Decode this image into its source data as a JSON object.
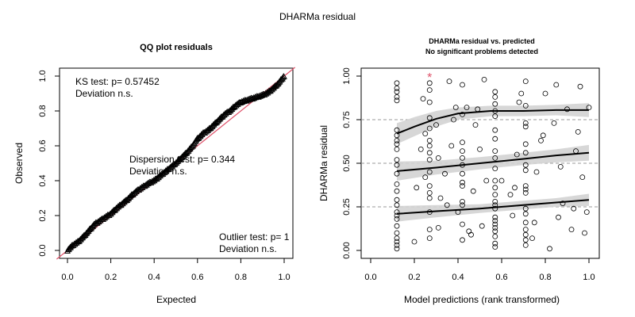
{
  "figure": {
    "title": "DHARMa residual"
  },
  "chart_data": [
    {
      "type": "scatter",
      "title": "QQ plot residuals",
      "xlabel": "Expected",
      "ylabel": "Observed",
      "xlim": [
        0,
        1
      ],
      "ylim": [
        0,
        1
      ],
      "xticks": [
        "0.0",
        "0.2",
        "0.4",
        "0.6",
        "0.8",
        "1.0"
      ],
      "yticks": [
        "0.0",
        "0.2",
        "0.4",
        "0.6",
        "0.8",
        "1.0"
      ],
      "reference_line": {
        "color": "#df536b",
        "from": [
          -0.05,
          -0.05
        ],
        "to": [
          1.05,
          1.05
        ]
      },
      "series": [
        {
          "marker": "triangle",
          "x": [
            0.0,
            0.025,
            0.05,
            0.075,
            0.1,
            0.125,
            0.15,
            0.175,
            0.2,
            0.225,
            0.25,
            0.275,
            0.3,
            0.325,
            0.35,
            0.375,
            0.4,
            0.425,
            0.45,
            0.475,
            0.5,
            0.525,
            0.55,
            0.575,
            0.6,
            0.625,
            0.65,
            0.675,
            0.7,
            0.725,
            0.75,
            0.775,
            0.8,
            0.825,
            0.85,
            0.875,
            0.9,
            0.925,
            0.95,
            0.975,
            1.0
          ],
          "y": [
            0.0,
            0.03,
            0.05,
            0.08,
            0.115,
            0.15,
            0.17,
            0.19,
            0.21,
            0.24,
            0.265,
            0.29,
            0.32,
            0.345,
            0.365,
            0.385,
            0.4,
            0.425,
            0.45,
            0.475,
            0.5,
            0.53,
            0.56,
            0.595,
            0.64,
            0.67,
            0.69,
            0.72,
            0.75,
            0.78,
            0.8,
            0.83,
            0.85,
            0.86,
            0.87,
            0.88,
            0.89,
            0.905,
            0.93,
            0.96,
            1.0
          ]
        }
      ],
      "annotations": [
        {
          "lines": [
            "KS test: p= 0.57452",
            "Deviation  n.s."
          ]
        },
        {
          "lines": [
            "Dispersion test: p= 0.344",
            "Deviation  n.s."
          ]
        },
        {
          "lines": [
            "Outlier test: p= 1",
            "Deviation  n.s."
          ]
        }
      ]
    },
    {
      "type": "scatter",
      "title": "DHARMa residual vs. predicted",
      "subtitle": "No significant problems detected",
      "xlabel": "Model predictions (rank transformed)",
      "ylabel": "DHARMa residual",
      "xlim": [
        0,
        1
      ],
      "ylim": [
        0,
        1
      ],
      "xticks": [
        "0.0",
        "0.2",
        "0.4",
        "0.6",
        "0.8",
        "1.0"
      ],
      "yticks": [
        "0.00",
        "0.25",
        "0.50",
        "0.75",
        "1.00"
      ],
      "hlines": [
        0.25,
        0.5,
        0.75
      ],
      "points": {
        "x": [
          0.12,
          0.12,
          0.12,
          0.12,
          0.12,
          0.12,
          0.12,
          0.12,
          0.12,
          0.12,
          0.12,
          0.12,
          0.12,
          0.12,
          0.12,
          0.12,
          0.12,
          0.12,
          0.12,
          0.12,
          0.12,
          0.12,
          0.12,
          0.12,
          0.12,
          0.12,
          0.27,
          0.27,
          0.27,
          0.27,
          0.27,
          0.27,
          0.27,
          0.27,
          0.27,
          0.27,
          0.27,
          0.27,
          0.27,
          0.27,
          0.27,
          0.27,
          0.42,
          0.42,
          0.42,
          0.42,
          0.42,
          0.42,
          0.42,
          0.42,
          0.42,
          0.42,
          0.42,
          0.42,
          0.42,
          0.57,
          0.57,
          0.57,
          0.57,
          0.57,
          0.57,
          0.57,
          0.57,
          0.57,
          0.57,
          0.57,
          0.57,
          0.57,
          0.57,
          0.57,
          0.57,
          0.57,
          0.57,
          0.57,
          0.57,
          0.57,
          0.57,
          0.57,
          0.57,
          0.71,
          0.71,
          0.71,
          0.71,
          0.71,
          0.71,
          0.71,
          0.71,
          0.71,
          0.71,
          0.71,
          0.71,
          0.71,
          0.71,
          0.71,
          0.71,
          0.71,
          0.71,
          0.2,
          0.23,
          0.24,
          0.25,
          0.3,
          0.31,
          0.32,
          0.34,
          0.36,
          0.37,
          0.38,
          0.4,
          0.44,
          0.46,
          0.47,
          0.48,
          0.5,
          0.51,
          0.52,
          0.53,
          0.65,
          0.66,
          0.67,
          0.68,
          0.74,
          0.76,
          0.78,
          0.8,
          0.82,
          0.84,
          0.86,
          0.87,
          0.9,
          0.92,
          0.95,
          0.96,
          0.99,
          1.0,
          0.21,
          0.25,
          0.31,
          0.35,
          0.39,
          0.45,
          0.49,
          0.6,
          0.64,
          0.69,
          0.75,
          0.79,
          0.85,
          0.88,
          0.94,
          0.97,
          0.98,
          0.93
        ],
        "y": [
          0.01,
          0.03,
          0.05,
          0.07,
          0.1,
          0.14,
          0.18,
          0.2,
          0.22,
          0.26,
          0.29,
          0.34,
          0.38,
          0.44,
          0.49,
          0.52,
          0.58,
          0.61,
          0.63,
          0.66,
          0.69,
          0.86,
          0.88,
          0.91,
          0.93,
          0.96,
          0.07,
          0.12,
          0.22,
          0.3,
          0.33,
          0.37,
          0.45,
          0.52,
          0.56,
          0.6,
          0.63,
          0.7,
          0.76,
          0.85,
          0.92,
          0.96,
          0.06,
          0.15,
          0.26,
          0.28,
          0.37,
          0.39,
          0.44,
          0.49,
          0.53,
          0.57,
          0.62,
          0.78,
          0.95,
          0.02,
          0.04,
          0.08,
          0.11,
          0.13,
          0.15,
          0.17,
          0.19,
          0.24,
          0.26,
          0.28,
          0.32,
          0.36,
          0.4,
          0.47,
          0.53,
          0.57,
          0.64,
          0.69,
          0.77,
          0.8,
          0.84,
          0.88,
          0.91,
          0.03,
          0.06,
          0.09,
          0.12,
          0.16,
          0.21,
          0.24,
          0.33,
          0.35,
          0.37,
          0.46,
          0.49,
          0.56,
          0.61,
          0.71,
          0.73,
          0.83,
          0.97,
          0.05,
          0.58,
          0.87,
          0.42,
          0.72,
          0.13,
          0.3,
          0.44,
          0.97,
          0.6,
          0.75,
          0.22,
          0.82,
          0.09,
          0.34,
          0.72,
          0.58,
          0.14,
          0.98,
          0.4,
          0.2,
          0.36,
          0.55,
          0.85,
          0.07,
          0.45,
          0.63,
          0.9,
          0.01,
          0.73,
          0.19,
          0.48,
          0.81,
          0.12,
          0.68,
          0.94,
          0.22,
          0.82,
          0.36,
          0.67,
          0.53,
          0.26,
          0.82,
          0.11,
          0.81,
          0.4,
          0.32,
          0.9,
          0.16,
          0.66,
          0.95,
          0.27,
          0.57,
          0.42,
          0.1,
          0.24
        ]
      },
      "outlier": {
        "x": 0.27,
        "y": 1.0,
        "marker": "*",
        "color": "#df536b"
      },
      "quantile_fits": [
        {
          "quantile": 0.25,
          "x": [
            0.12,
            0.3,
            0.5,
            0.7,
            0.85,
            1.0
          ],
          "y": [
            0.21,
            0.225,
            0.24,
            0.26,
            0.275,
            0.29
          ],
          "band_upper": [
            0.255,
            0.26,
            0.265,
            0.285,
            0.3,
            0.325
          ],
          "band_lower": [
            0.165,
            0.19,
            0.215,
            0.235,
            0.25,
            0.255
          ]
        },
        {
          "quantile": 0.5,
          "x": [
            0.12,
            0.3,
            0.5,
            0.7,
            0.85,
            1.0
          ],
          "y": [
            0.455,
            0.475,
            0.5,
            0.525,
            0.545,
            0.56
          ],
          "band_upper": [
            0.51,
            0.515,
            0.535,
            0.56,
            0.58,
            0.605
          ],
          "band_lower": [
            0.4,
            0.435,
            0.465,
            0.49,
            0.505,
            0.515
          ]
        },
        {
          "quantile": 0.75,
          "x": [
            0.12,
            0.2,
            0.3,
            0.4,
            0.55,
            0.7,
            0.85,
            1.0
          ],
          "y": [
            0.67,
            0.71,
            0.755,
            0.785,
            0.8,
            0.8,
            0.805,
            0.805
          ],
          "band_upper": [
            0.73,
            0.765,
            0.8,
            0.82,
            0.83,
            0.83,
            0.835,
            0.845
          ],
          "band_lower": [
            0.61,
            0.655,
            0.71,
            0.75,
            0.77,
            0.77,
            0.775,
            0.765
          ]
        }
      ]
    }
  ]
}
